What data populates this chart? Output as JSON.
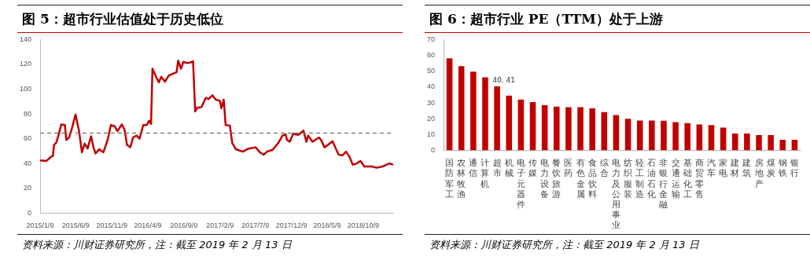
{
  "chart_data": [
    {
      "type": "line",
      "title": "图 5：超市行业估值处于历史低位",
      "annotations": [
        "资料来源：川财证券研究所，注：截至 2019 年 2 月 13 日"
      ],
      "x": [
        "2015-01-09",
        "2015-02-04",
        "2015-02-22",
        "2015-03-04",
        "2015-03-09",
        "2015-03-19",
        "2015-03-31",
        "2015-04-09",
        "2015-04-24",
        "2015-04-30",
        "2015-05-12",
        "2015-05-24",
        "2015-06-08",
        "2015-06-23",
        "2015-07-05",
        "2015-07-17",
        "2015-07-29",
        "2015-08-13",
        "2015-08-23",
        "2015-09-01",
        "2015-09-16",
        "2015-10-04",
        "2015-10-22",
        "2015-11-05",
        "2015-11-21",
        "2015-12-03",
        "2015-12-21",
        "2016-01-02",
        "2016-01-12",
        "2016-01-26",
        "2016-02-07",
        "2016-02-22",
        "2016-03-05",
        "2016-03-21",
        "2016-04-05",
        "2016-04-15",
        "2016-04-23",
        "2016-04-29",
        "2016-05-14",
        "2016-05-26",
        "2016-06-05",
        "2016-06-21",
        "2016-07-07",
        "2016-07-25",
        "2016-08-09",
        "2016-08-16",
        "2016-08-28",
        "2016-09-07",
        "2016-09-24",
        "2016-10-06",
        "2016-10-18",
        "2016-10-27",
        "2016-11-05",
        "2016-11-23",
        "2016-12-11",
        "2016-12-23",
        "2017-01-08",
        "2017-01-22",
        "2017-02-09",
        "2017-02-15",
        "2017-02-25",
        "2017-03-05",
        "2017-03-23",
        "2017-04-02",
        "2017-04-17",
        "2017-05-17",
        "2017-06-10",
        "2017-07-10",
        "2017-07-28",
        "2017-08-13",
        "2017-08-27",
        "2017-09-20",
        "2017-10-14",
        "2017-11-01",
        "2017-11-14",
        "2017-11-20",
        "2017-12-02",
        "2017-12-16",
        "2018-01-07",
        "2018-01-29",
        "2018-02-10",
        "2018-02-18",
        "2018-03-08",
        "2018-03-20",
        "2018-04-04",
        "2018-04-13",
        "2018-04-28",
        "2018-05-13",
        "2018-06-01",
        "2018-06-15",
        "2018-06-27",
        "2018-07-13",
        "2018-07-28",
        "2018-08-10",
        "2018-08-26",
        "2018-09-11",
        "2018-09-27",
        "2018-10-14",
        "2018-11-16",
        "2018-12-04",
        "2018-12-29",
        "2019-01-28",
        "2019-02-13"
      ],
      "series": [
        {
          "color": "#c00000",
          "values": [
            42.5,
            42,
            45,
            46,
            55,
            57,
            65,
            71.5,
            71,
            59,
            61,
            68.5,
            79.5,
            66,
            49,
            56,
            52,
            62,
            53,
            48,
            51.5,
            49,
            59,
            71,
            70,
            66,
            71.5,
            67,
            55,
            53,
            61,
            62.5,
            60,
            71,
            71,
            74.5,
            72,
            116.5,
            110,
            105.5,
            110,
            106,
            111,
            112.5,
            113.5,
            123,
            116.5,
            122,
            121,
            121.5,
            122.5,
            82,
            85,
            85.5,
            93,
            92,
            95,
            91.5,
            90.5,
            84.5,
            91.5,
            71,
            70.5,
            56.5,
            51.5,
            49.5,
            52,
            53,
            49,
            47,
            49.5,
            51,
            56.5,
            62.5,
            63.5,
            59,
            57.5,
            64,
            63,
            66.5,
            57.5,
            62.5,
            57.5,
            59,
            61,
            59,
            53,
            55,
            58,
            52,
            47,
            46.5,
            49.5,
            46,
            39,
            40,
            42,
            37.5,
            37.5,
            36.5,
            37.5,
            40,
            39
          ]
        }
      ],
      "xlim": [
        "2015-01-09",
        "2019-02-13"
      ],
      "xticks": [
        {
          "value": "2015-01-09",
          "label": "2015/1/9"
        },
        {
          "value": "2015-06-09",
          "label": "2015/6/9"
        },
        {
          "value": "2015-11-09",
          "label": "2015/11/9"
        },
        {
          "value": "2016-04-09",
          "label": "2016/4/9"
        },
        {
          "value": "2016-09-09",
          "label": "2016/9/9"
        },
        {
          "value": "2017-02-09",
          "label": "2017/2/9"
        },
        {
          "value": "2017-07-09",
          "label": "2017/7/9"
        },
        {
          "value": "2017-12-09",
          "label": "2017/12/9"
        },
        {
          "value": "2018-05-09",
          "label": "2018/5/9"
        },
        {
          "value": "2018-10-09",
          "label": "2018/10/9"
        }
      ],
      "ylim": [
        0,
        140
      ],
      "yticks": [
        0,
        20,
        40,
        60,
        80,
        100,
        120,
        140
      ],
      "ref_lines": [
        {
          "axis": "y",
          "value": 64.5,
          "color": "#808080",
          "line_style": "dashed"
        }
      ]
    },
    {
      "type": "bar",
      "title": "图 6：超市行业 PE（TTM）处于上游",
      "annotations": [
        "资料来源：川财证券研究所，注：截至 2019 年 2 月 13 日"
      ],
      "categories": [
        "国防军工",
        "农林牧渔",
        "通信",
        "计算机",
        "超市",
        "机械",
        "电子元器件",
        "传媒",
        "电力设备",
        "餐饮旅游",
        "医药",
        "有色金属",
        "食品饮料",
        "综合",
        "电力及公用事业",
        "纺织服装",
        "轻工制造",
        "石油石化",
        "非银行金融",
        "交通运输",
        "基础化工",
        "商贸零售",
        "汽车",
        "家电",
        "建材",
        "建筑",
        "房地产",
        "煤炭",
        "钢铁",
        "银行"
      ],
      "series": [
        {
          "color": "#c00000",
          "values": [
            58.2,
            53.2,
            49.7,
            46.1,
            40.41,
            34.6,
            32.1,
            30.6,
            28.6,
            27.7,
            27.3,
            27.3,
            26.6,
            24.2,
            22.4,
            20.0,
            18.9,
            18.9,
            18.8,
            17.9,
            17.3,
            16.4,
            16.0,
            14.4,
            10.7,
            10.7,
            9.7,
            9.7,
            6.7,
            6.7
          ],
          "value_labels": [
            null,
            null,
            null,
            null,
            "40. 41",
            null,
            null,
            null,
            null,
            null,
            null,
            null,
            null,
            null,
            null,
            null,
            null,
            null,
            null,
            null,
            null,
            null,
            null,
            null,
            null,
            null,
            null,
            null,
            null,
            null
          ]
        }
      ],
      "ylim": [
        0,
        70
      ],
      "yticks": [
        0,
        10,
        20,
        30,
        40,
        50,
        60,
        70
      ]
    }
  ]
}
